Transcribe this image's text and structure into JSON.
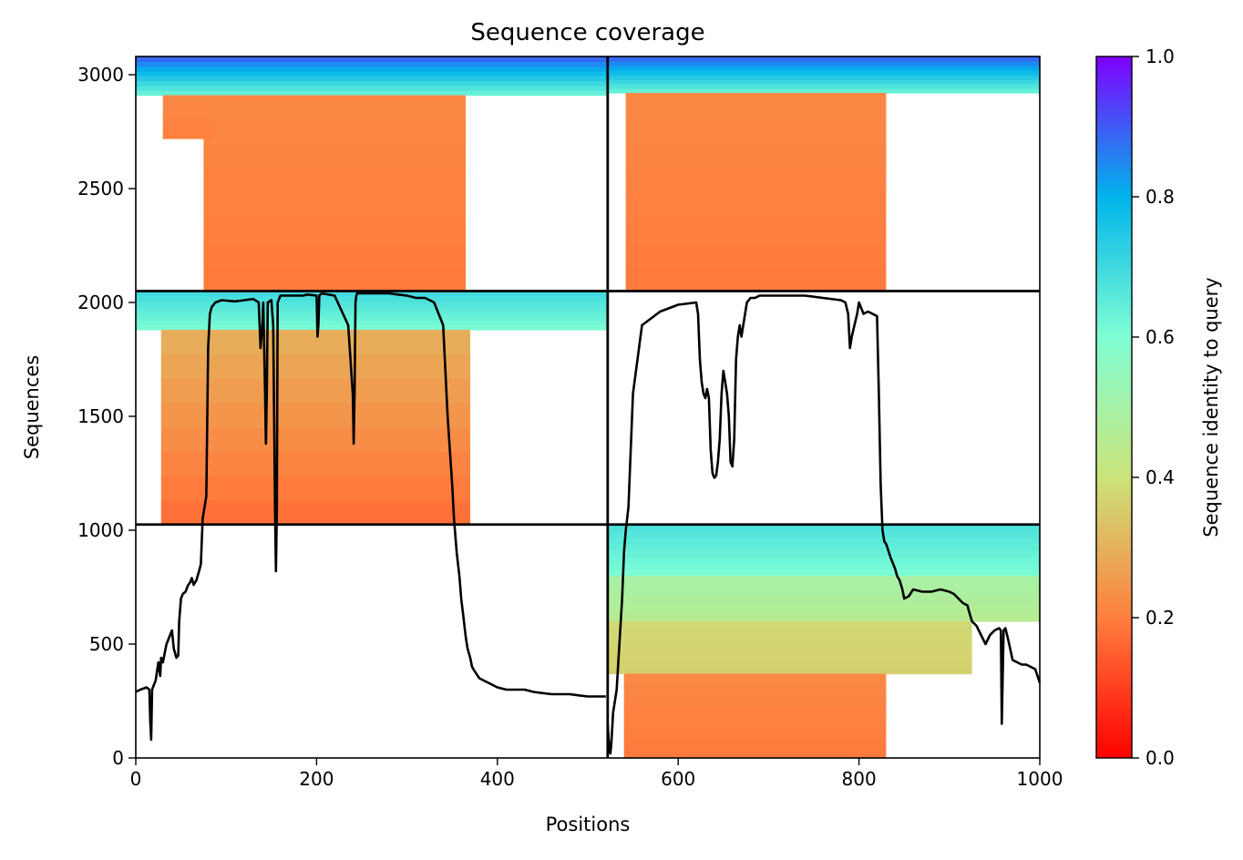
{
  "chart_data": {
    "type": "heatmap",
    "title": "Sequence coverage",
    "xlabel": "Positions",
    "ylabel": "Sequences",
    "xlim": [
      0,
      1000
    ],
    "ylim": [
      0,
      3080
    ],
    "x_ticks": [
      0,
      200,
      400,
      600,
      800,
      1000
    ],
    "y_ticks": [
      0,
      500,
      1000,
      1500,
      2000,
      2500,
      3000
    ],
    "grid": false,
    "divider_positions": {
      "x": [
        522
      ],
      "y": [
        1025,
        2050
      ]
    },
    "colorbar": {
      "label": "Sequence identity to query",
      "colormap": "rainbow",
      "range": [
        0.0,
        1.0
      ],
      "ticks": [
        0.0,
        0.2,
        0.4,
        0.6,
        0.8,
        1.0
      ],
      "tick_labels": [
        "0.0",
        "0.2",
        "0.4",
        "0.6",
        "0.8",
        "1.0"
      ],
      "colors": [
        "#ff0000",
        "#ff7f3f",
        "#cbe47a",
        "#7ffed4",
        "#00b4eb",
        "#7f00ff"
      ]
    },
    "blocks": [
      {
        "name": "top-left",
        "bands": [
          {
            "y": [
              2910,
              3080
            ],
            "x": [
              0,
              522
            ],
            "identity_low": 0.62,
            "identity_high": 0.9
          },
          {
            "y": [
              2050,
              2910
            ],
            "x": [
              75,
              365
            ],
            "identity_low": 0.19,
            "identity_high": 0.22
          },
          {
            "y": [
              2720,
              2910
            ],
            "x": [
              30,
              85
            ],
            "identity_low": 0.2,
            "identity_high": 0.22
          }
        ]
      },
      {
        "name": "top-right",
        "bands": [
          {
            "y": [
              2920,
              3080
            ],
            "x": [
              522,
              1000
            ],
            "identity_low": 0.62,
            "identity_high": 0.9
          },
          {
            "y": [
              2050,
              2920
            ],
            "x": [
              542,
              830
            ],
            "identity_low": 0.19,
            "identity_high": 0.22
          }
        ]
      },
      {
        "name": "middle-left",
        "bands": [
          {
            "y": [
              1880,
              2050
            ],
            "x": [
              0,
              522
            ],
            "identity_low": 0.6,
            "identity_high": 0.7
          },
          {
            "y": [
              1025,
              1880
            ],
            "x": [
              28,
              370
            ],
            "identity_low": 0.17,
            "identity_high": 0.3
          }
        ]
      },
      {
        "name": "bottom-right",
        "bands": [
          {
            "y": [
              800,
              1025
            ],
            "x": [
              522,
              1000
            ],
            "identity_low": 0.6,
            "identity_high": 0.68
          },
          {
            "y": [
              600,
              800
            ],
            "x": [
              522,
              1000
            ],
            "identity_low": 0.45,
            "identity_high": 0.5
          },
          {
            "y": [
              370,
              600
            ],
            "x": [
              522,
              925
            ],
            "identity_low": 0.36,
            "identity_high": 0.38
          },
          {
            "y": [
              0,
              370
            ],
            "x": [
              540,
              830
            ],
            "identity_low": 0.19,
            "identity_high": 0.22
          }
        ]
      }
    ],
    "series": [
      {
        "x": [
          0,
          5,
          12,
          15,
          16,
          17,
          18,
          20,
          22,
          25,
          27,
          28,
          30,
          32,
          34,
          37,
          40,
          42,
          45,
          47,
          48,
          50,
          52,
          55,
          58,
          60,
          62,
          64,
          67,
          70,
          72,
          74,
          76,
          78,
          80,
          82,
          84,
          85,
          88,
          95,
          110,
          120,
          130,
          136,
          138,
          140,
          141,
          142,
          143,
          144,
          145,
          146,
          150,
          152,
          153,
          154,
          155,
          156,
          157,
          160,
          170,
          185,
          190,
          200,
          201,
          202,
          203,
          204,
          206,
          220,
          235,
          240,
          241,
          242,
          243,
          244,
          245,
          246,
          248,
          260,
          280,
          290,
          300,
          310,
          320,
          330,
          340,
          345,
          350,
          352,
          355,
          358,
          360,
          363,
          365,
          367,
          370,
          372,
          375,
          380,
          385,
          390,
          395,
          400,
          410,
          420,
          430,
          440,
          450,
          460,
          470,
          480,
          490,
          500,
          510,
          520
        ],
        "y": [
          290,
          300,
          310,
          300,
          160,
          80,
          300,
          320,
          340,
          420,
          360,
          440,
          420,
          460,
          500,
          530,
          560,
          480,
          440,
          450,
          600,
          700,
          720,
          730,
          760,
          770,
          790,
          760,
          780,
          820,
          850,
          1050,
          1100,
          1150,
          1800,
          1950,
          1980,
          1985,
          2000,
          2010,
          2005,
          2010,
          2015,
          2000,
          1800,
          1900,
          2000,
          1800,
          1600,
          1380,
          1600,
          2000,
          2010,
          1900,
          1500,
          1100,
          820,
          1100,
          2000,
          2030,
          2030,
          2030,
          2035,
          2030,
          1850,
          1900,
          2030,
          2035,
          2040,
          2030,
          1900,
          1600,
          1380,
          1600,
          2000,
          2030,
          2040,
          2040,
          2040,
          2040,
          2040,
          2035,
          2030,
          2020,
          2020,
          2000,
          1900,
          1500,
          1200,
          1050,
          900,
          800,
          700,
          600,
          530,
          480,
          440,
          400,
          380,
          350,
          340,
          330,
          320,
          310,
          300,
          300,
          300,
          290,
          285,
          280,
          280,
          280,
          275,
          270,
          270,
          270
        ]
      },
      {
        "x": [
          522,
          524,
          525,
          526,
          528,
          530,
          532,
          535,
          538,
          540,
          542,
          545,
          550,
          560,
          580,
          600,
          620,
          622,
          624,
          626,
          628,
          630,
          632,
          634,
          636,
          638,
          640,
          642,
          644,
          646,
          648,
          650,
          652,
          654,
          656,
          658,
          660,
          662,
          664,
          666,
          668,
          670,
          672,
          674,
          676,
          678,
          680,
          685,
          690,
          700,
          720,
          740,
          760,
          780,
          785,
          788,
          790,
          792,
          795,
          798,
          800,
          805,
          810,
          815,
          820,
          822,
          824,
          826,
          828,
          830,
          835,
          840,
          842,
          845,
          848,
          850,
          855,
          860,
          870,
          880,
          890,
          900,
          905,
          910,
          915,
          920,
          922,
          925,
          930,
          935,
          940,
          945,
          950,
          955,
          957,
          958,
          960,
          962,
          965,
          970,
          975,
          980,
          985,
          990,
          995,
          1000
        ],
        "y": [
          150,
          30,
          20,
          60,
          200,
          250,
          300,
          500,
          700,
          900,
          1000,
          1100,
          1600,
          1900,
          1960,
          1990,
          2000,
          1950,
          1750,
          1650,
          1600,
          1580,
          1620,
          1580,
          1350,
          1250,
          1230,
          1240,
          1300,
          1400,
          1600,
          1700,
          1650,
          1600,
          1500,
          1300,
          1280,
          1400,
          1750,
          1850,
          1900,
          1850,
          1900,
          1950,
          2000,
          2010,
          2020,
          2020,
          2030,
          2030,
          2030,
          2030,
          2020,
          2010,
          2000,
          1950,
          1800,
          1850,
          1900,
          1950,
          2000,
          1950,
          1960,
          1950,
          1940,
          1600,
          1200,
          1000,
          950,
          940,
          880,
          830,
          800,
          780,
          740,
          700,
          710,
          740,
          730,
          730,
          740,
          730,
          720,
          700,
          680,
          670,
          640,
          600,
          580,
          540,
          500,
          540,
          560,
          570,
          560,
          150,
          560,
          570,
          520,
          430,
          420,
          410,
          410,
          400,
          390,
          330
        ]
      }
    ]
  }
}
